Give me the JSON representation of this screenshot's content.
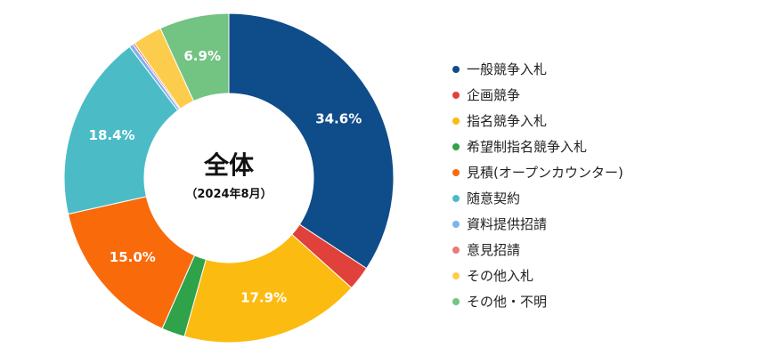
{
  "chart_data": {
    "type": "pie",
    "center_title": "全体",
    "center_subtitle": "（2024年8月）",
    "categories": [
      "一般競争入札",
      "企画競争",
      "指名競争入札",
      "希望制指名競争入札",
      "見積(オープンカウンター)",
      "随意契約",
      "資料提供招請",
      "意見招請",
      "その他入札",
      "その他・不明"
    ],
    "values": [
      34.6,
      2.4,
      17.9,
      2.3,
      15.0,
      18.4,
      0.4,
      0.2,
      2.9,
      6.9
    ],
    "data_labels": [
      "34.6%",
      "",
      "17.9%",
      "",
      "15.0%",
      "18.4%",
      "",
      "",
      "",
      "6.9%"
    ],
    "colors": [
      "#0f4c8a",
      "#e0413a",
      "#fbbb10",
      "#2fa24a",
      "#f96a0a",
      "#4bbcc6",
      "#7fb1f0",
      "#ec7a78",
      "#fccd4c",
      "#73c383"
    ],
    "legend_position": "right"
  }
}
